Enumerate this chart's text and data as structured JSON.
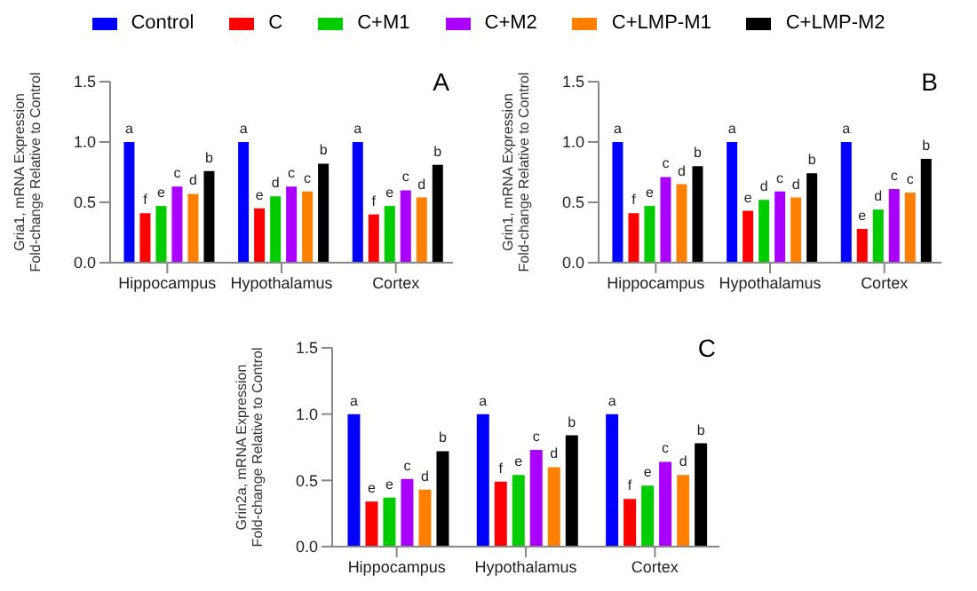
{
  "chart_data": [
    {
      "type": "bar",
      "legend": "top",
      "annotations": [
        "A"
      ],
      "ylabel": "Gria1,  mRNA Expression\nFold-change Relative to Control",
      "categories": [
        "Hippocampus",
        "Hypothalamus",
        "Cortex"
      ],
      "ylim": [
        0,
        1.5
      ],
      "yticks": [
        {
          "value": 0,
          "label": "0.0"
        },
        {
          "value": 0.5,
          "label": "0.5"
        },
        {
          "value": 1,
          "label": "1.0"
        },
        {
          "value": 1.5,
          "label": "1.5"
        }
      ],
      "series": [
        {
          "name": "Control",
          "color": "#0000ff",
          "values": [
            1.0,
            1.0,
            1.0
          ],
          "value_labels": [
            "a",
            "a",
            "a"
          ]
        },
        {
          "name": "C",
          "color": "#ff0000",
          "values": [
            0.41,
            0.45,
            0.4
          ],
          "value_labels": [
            "f",
            "e",
            "f"
          ]
        },
        {
          "name": "C+M1",
          "color": "#00cc00",
          "values": [
            0.47,
            0.55,
            0.47
          ],
          "value_labels": [
            "e",
            "d",
            "e"
          ]
        },
        {
          "name": "C+M2",
          "color": "#aa00ff",
          "values": [
            0.63,
            0.63,
            0.6
          ],
          "value_labels": [
            "c",
            "c",
            "c"
          ]
        },
        {
          "name": "C+LMP-M1",
          "color": "#ff8000",
          "values": [
            0.57,
            0.59,
            0.54
          ],
          "value_labels": [
            "d",
            "c",
            "d"
          ]
        },
        {
          "name": "C+LMP-M2",
          "color": "#000000",
          "values": [
            0.76,
            0.82,
            0.81
          ],
          "value_labels": [
            "b",
            "b",
            "b"
          ]
        }
      ]
    },
    {
      "type": "bar",
      "annotations": [
        "B"
      ],
      "ylabel": "Grin1,  mRNA Expression\nFold-change Relative to Control",
      "categories": [
        "Hippocampus",
        "Hypothalamus",
        "Cortex"
      ],
      "ylim": [
        0,
        1.5
      ],
      "yticks": [
        {
          "value": 0,
          "label": "0.0"
        },
        {
          "value": 0.5,
          "label": "0.5"
        },
        {
          "value": 1,
          "label": "1.0"
        },
        {
          "value": 1.5,
          "label": "1.5"
        }
      ],
      "series": [
        {
          "color": "#0000ff",
          "values": [
            1.0,
            1.0,
            1.0
          ],
          "value_labels": [
            "a",
            "a",
            "a"
          ]
        },
        {
          "color": "#ff0000",
          "values": [
            0.41,
            0.43,
            0.28
          ],
          "value_labels": [
            "f",
            "e",
            "e"
          ]
        },
        {
          "color": "#00cc00",
          "values": [
            0.47,
            0.52,
            0.44
          ],
          "value_labels": [
            "e",
            "d",
            "d"
          ]
        },
        {
          "color": "#aa00ff",
          "values": [
            0.71,
            0.59,
            0.61
          ],
          "value_labels": [
            "c",
            "c",
            "c"
          ]
        },
        {
          "color": "#ff8000",
          "values": [
            0.65,
            0.54,
            0.58
          ],
          "value_labels": [
            "d",
            "d",
            "c"
          ]
        },
        {
          "color": "#000000",
          "values": [
            0.8,
            0.74,
            0.86
          ],
          "value_labels": [
            "b",
            "b",
            "b"
          ]
        }
      ]
    },
    {
      "type": "bar",
      "annotations": [
        "C"
      ],
      "ylabel": "Grin2a,  mRNA Expression\nFold-change Relative to Control",
      "categories": [
        "Hippocampus",
        "Hypothalamus",
        "Cortex"
      ],
      "ylim": [
        0,
        1.5
      ],
      "yticks": [
        {
          "value": 0,
          "label": "0.0"
        },
        {
          "value": 0.5,
          "label": "0.5"
        },
        {
          "value": 1,
          "label": "1.0"
        },
        {
          "value": 1.5,
          "label": "1.5"
        }
      ],
      "series": [
        {
          "color": "#0000ff",
          "values": [
            1.0,
            1.0,
            1.0
          ],
          "value_labels": [
            "a",
            "a",
            "a"
          ]
        },
        {
          "color": "#ff0000",
          "values": [
            0.34,
            0.49,
            0.36
          ],
          "value_labels": [
            "e",
            "f",
            "f"
          ]
        },
        {
          "color": "#00cc00",
          "values": [
            0.37,
            0.54,
            0.46
          ],
          "value_labels": [
            "e",
            "e",
            "e"
          ]
        },
        {
          "color": "#aa00ff",
          "values": [
            0.51,
            0.73,
            0.64
          ],
          "value_labels": [
            "c",
            "c",
            "c"
          ]
        },
        {
          "color": "#ff8000",
          "values": [
            0.43,
            0.6,
            0.54
          ],
          "value_labels": [
            "d",
            "d",
            "d"
          ]
        },
        {
          "color": "#000000",
          "values": [
            0.72,
            0.84,
            0.78
          ],
          "value_labels": [
            "b",
            "b",
            "b"
          ]
        }
      ]
    }
  ]
}
